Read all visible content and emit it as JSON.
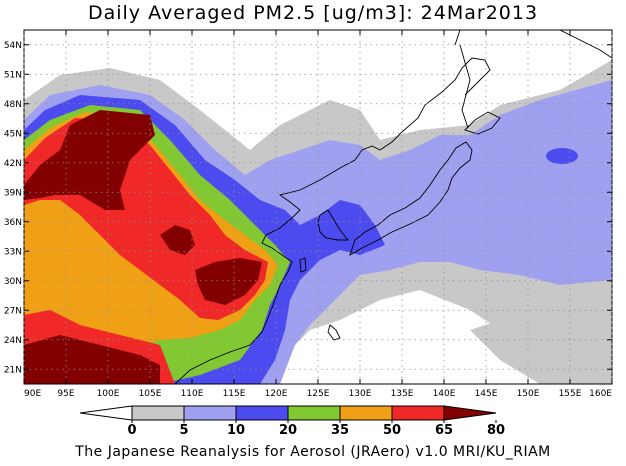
{
  "title": "Daily Averaged PM2.5 [ug/m3]: 24Mar2013",
  "footer": "The Japanese Reanalysis for Aerosol (JRAero) v1.0 MRI/KU_RIAM",
  "lat_labels": [
    "54N",
    "51N",
    "48N",
    "45N",
    "42N",
    "39N",
    "36N",
    "33N",
    "30N",
    "27N",
    "24N",
    "21N"
  ],
  "lat_values": [
    54,
    51,
    48,
    45,
    42,
    39,
    36,
    33,
    30,
    27,
    24,
    21
  ],
  "lon_labels": [
    "90E",
    "95E",
    "100E",
    "105E",
    "110E",
    "115E",
    "120E",
    "125E",
    "130E",
    "135E",
    "140E",
    "145E",
    "150E",
    "155E",
    "160E"
  ],
  "lon_values": [
    90,
    95,
    100,
    105,
    110,
    115,
    120,
    125,
    130,
    135,
    140,
    145,
    150,
    155,
    160
  ],
  "colorbar": {
    "labels": [
      "0",
      "5",
      "10",
      "20",
      "35",
      "50",
      "65",
      "80"
    ],
    "colors": [
      "#ffffff",
      "#c8c8c8",
      "#a0a0f0",
      "#4b4bf0",
      "#82c832",
      "#f0a014",
      "#f02828",
      "#820000"
    ]
  },
  "palette": {
    "gray": "#c8c8c8",
    "light_blue": "#a0a0f0",
    "blue": "#4b4bf0",
    "green": "#82c832",
    "orange": "#f0a014",
    "red": "#f02828",
    "dark_red": "#820000"
  }
}
